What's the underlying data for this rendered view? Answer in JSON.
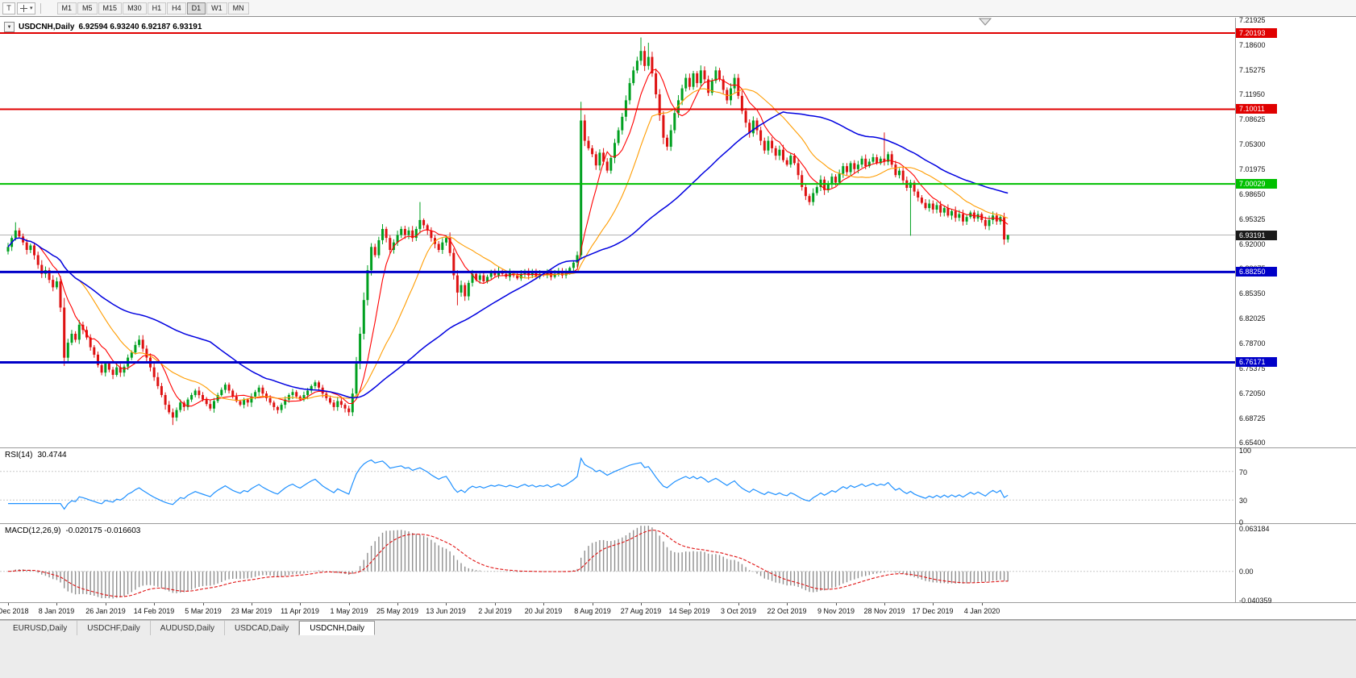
{
  "toolbar": {
    "tool_button": "T",
    "caret_glyph": "▾",
    "timeframes": [
      "M1",
      "M5",
      "M15",
      "M30",
      "H1",
      "H4",
      "D1",
      "W1",
      "MN"
    ],
    "active_timeframe": "D1"
  },
  "chart": {
    "collapse_glyph": "▼",
    "title_symbol": "USDCNH,Daily",
    "title_ohlc": "6.92594 6.93240 6.92187 6.93191",
    "price_scale_labels": [
      "7.21925",
      "7.18600",
      "7.15275",
      "7.11950",
      "7.08625",
      "7.05300",
      "7.01975",
      "6.98650",
      "6.95325",
      "6.92000",
      "6.88675",
      "6.85350",
      "6.82025",
      "6.78700",
      "6.75375",
      "6.72050",
      "6.68725",
      "6.65400"
    ],
    "levels": [
      {
        "price": 7.20193,
        "color": "#e00000",
        "width": 2
      },
      {
        "price": 7.10011,
        "color": "#e00000",
        "width": 2
      },
      {
        "price": 7.00029,
        "color": "#00c000",
        "width": 2
      },
      {
        "price": 6.8825,
        "color": "#0000c8",
        "width": 3
      },
      {
        "price": 6.76171,
        "color": "#0000c8",
        "width": 3
      }
    ],
    "current_price_line": {
      "price": 6.93191,
      "color": "#b4b4b4"
    },
    "badges": [
      {
        "text": "7.20193",
        "price": 7.20193,
        "color": "#e00000"
      },
      {
        "text": "7.10011",
        "price": 7.10011,
        "color": "#e00000"
      },
      {
        "text": "7.00029",
        "price": 7.00029,
        "color": "#00c000"
      },
      {
        "text": "6.93191",
        "price": 6.93191,
        "color": "#1a1a1a"
      },
      {
        "text": "6.88250",
        "price": 6.8825,
        "color": "#0000c8"
      },
      {
        "text": "6.76171",
        "price": 6.76171,
        "color": "#0000c8"
      }
    ]
  },
  "chart_data": {
    "type": "candlestick",
    "symbol": "USDCNH",
    "timeframe": "Daily",
    "last_candle_ohlc": {
      "open": 6.92594,
      "high": 6.9324,
      "low": 6.92187,
      "close": 6.93191
    },
    "ylim": [
      6.648,
      7.2224
    ],
    "up_color": "#00a020",
    "down_color": "#de1212",
    "closes": [
      6.916,
      6.928,
      6.938,
      6.93,
      6.922,
      6.912,
      6.918,
      6.905,
      6.892,
      6.88,
      6.885,
      6.872,
      6.862,
      6.87,
      6.835,
      6.768,
      6.788,
      6.8,
      6.792,
      6.812,
      6.805,
      6.795,
      6.782,
      6.772,
      6.758,
      6.748,
      6.76,
      6.752,
      6.745,
      6.755,
      6.748,
      6.756,
      6.768,
      6.775,
      6.785,
      6.792,
      6.78,
      6.768,
      6.755,
      6.742,
      6.73,
      6.718,
      6.705,
      6.695,
      6.688,
      6.698,
      6.708,
      6.702,
      6.712,
      6.718,
      6.724,
      6.718,
      6.712,
      6.706,
      6.7,
      6.71,
      6.718,
      6.725,
      6.732,
      6.724,
      6.716,
      6.71,
      6.705,
      6.712,
      6.708,
      6.716,
      6.722,
      6.728,
      6.72,
      6.714,
      6.708,
      6.702,
      6.698,
      6.705,
      6.712,
      6.718,
      6.722,
      6.716,
      6.712,
      6.718,
      6.724,
      6.73,
      6.735,
      6.728,
      6.72,
      6.714,
      6.708,
      6.702,
      6.71,
      6.705,
      6.7,
      6.695,
      6.72,
      6.76,
      6.8,
      6.845,
      6.885,
      6.916,
      6.905,
      6.925,
      6.94,
      6.928,
      6.912,
      6.922,
      6.932,
      6.94,
      6.932,
      6.938,
      6.928,
      6.94,
      6.952,
      6.945,
      6.938,
      6.928,
      6.92,
      6.912,
      6.922,
      6.928,
      6.908,
      6.878,
      6.855,
      6.865,
      6.85,
      6.868,
      6.88,
      6.872,
      6.878,
      6.87,
      6.876,
      6.882,
      6.878,
      6.884,
      6.88,
      6.876,
      6.882,
      6.878,
      6.874,
      6.88,
      6.884,
      6.878,
      6.882,
      6.876,
      6.88,
      6.878,
      6.882,
      6.876,
      6.88,
      6.884,
      6.878,
      6.882,
      6.888,
      6.895,
      6.905,
      7.085,
      7.058,
      7.048,
      7.04,
      7.025,
      7.042,
      7.03,
      7.018,
      7.035,
      7.055,
      7.072,
      7.09,
      7.112,
      7.135,
      7.152,
      7.165,
      7.178,
      7.158,
      7.17,
      7.148,
      7.12,
      7.092,
      7.062,
      7.05,
      7.072,
      7.095,
      7.112,
      7.128,
      7.142,
      7.13,
      7.148,
      7.135,
      7.152,
      7.14,
      7.122,
      7.138,
      7.152,
      7.14,
      7.126,
      7.112,
      7.128,
      7.142,
      7.118,
      7.098,
      7.082,
      7.068,
      7.085,
      7.072,
      7.058,
      7.045,
      7.058,
      7.048,
      7.038,
      7.046,
      7.032,
      7.026,
      7.038,
      7.028,
      7.012,
      6.996,
      6.984,
      6.976,
      6.988,
      6.996,
      7.006,
      6.992,
      7.0,
      7.01,
      7.002,
      7.014,
      7.024,
      7.016,
      7.028,
      7.02,
      7.026,
      7.034,
      7.024,
      7.03,
      7.036,
      7.028,
      7.034,
      7.03,
      7.04,
      7.026,
      7.012,
      7.018,
      7.005,
      6.995,
      7.002,
      6.99,
      6.982,
      6.975,
      6.968,
      6.974,
      6.966,
      6.972,
      6.962,
      6.968,
      6.958,
      6.964,
      6.955,
      6.96,
      6.95,
      6.956,
      6.962,
      6.954,
      6.96,
      6.952,
      6.944,
      6.952,
      6.958,
      6.95,
      6.956,
      6.926,
      6.93191
    ],
    "wick_overrides": {
      "2": {
        "high": 6.949
      },
      "15": {
        "low": 6.757
      },
      "44": {
        "low": 6.678
      },
      "110": {
        "high": 6.976
      },
      "120": {
        "low": 6.838
      },
      "153": {
        "high": 7.11,
        "low": 6.9
      },
      "169": {
        "high": 7.196
      },
      "171": {
        "high": 7.189
      },
      "234": {
        "high": 7.069
      },
      "241": {
        "low": 6.931
      },
      "266": {
        "low": 6.919
      },
      "267": {
        "open": 6.92594,
        "high": 6.9324,
        "low": 6.92187,
        "close": 6.93191
      }
    },
    "x_labels": [
      "20 Dec 2018",
      "8 Jan 2019",
      "26 Jan 2019",
      "14 Feb 2019",
      "5 Mar 2019",
      "23 Mar 2019",
      "11 Apr 2019",
      "1 May 2019",
      "25 May 2019",
      "13 Jun 2019",
      "2 Jul 2019",
      "20 Jul 2019",
      "8 Aug 2019",
      "27 Aug 2019",
      "14 Sep 2019",
      "3 Oct 2019",
      "22 Oct 2019",
      "9 Nov 2019",
      "28 Nov 2019",
      "17 Dec 2019",
      "4 Jan 2020"
    ],
    "bars_per_label": 13,
    "moving_averages": [
      {
        "name": "fast-ma",
        "period": 8,
        "color": "#ff0000",
        "width": 1.1
      },
      {
        "name": "medium-ma",
        "period": 20,
        "color": "#ff9c00",
        "width": 1.1
      },
      {
        "name": "slow-ma",
        "period": 55,
        "color": "#0000e0",
        "width": 1.5
      }
    ],
    "indicators": {
      "rsi": {
        "label": "RSI(14)",
        "value": "30.4744",
        "period": 14,
        "color": "#1e90ff",
        "levels": [
          30,
          70
        ],
        "scale": [
          "100",
          "70",
          "30",
          "0"
        ]
      },
      "macd": {
        "label": "MACD(12,26,9)",
        "values": "-0.020175 -0.016603",
        "fast": 12,
        "slow": 26,
        "signal": 9,
        "histogram_color": "#8f8f8f",
        "signal_color": "#e01212",
        "ylim": [
          -0.0404,
          0.0632
        ],
        "scale": [
          "0.063184",
          "0.00",
          "-0.040359"
        ]
      }
    }
  },
  "tabs": {
    "items": [
      "EURUSD,Daily",
      "USDCHF,Daily",
      "AUDUSD,Daily",
      "USDCAD,Daily",
      "USDCNH,Daily"
    ],
    "active": "USDCNH,Daily"
  }
}
